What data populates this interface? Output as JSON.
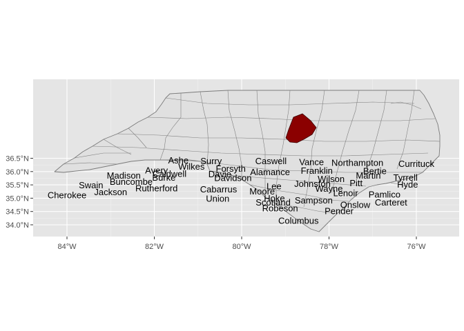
{
  "colors": {
    "highlight": "#8b0000",
    "panel": "#e5e5e5",
    "county_fill": "#e0e0e0",
    "border": "#7f7f7f"
  },
  "highlighted_county": "Wake",
  "axes": {
    "x_ticks": [
      {
        "value": -84,
        "label": "84°W"
      },
      {
        "value": -82,
        "label": "82°W"
      },
      {
        "value": -80,
        "label": "80°W"
      },
      {
        "value": -78,
        "label": "78°W"
      },
      {
        "value": -76,
        "label": "76°W"
      }
    ],
    "y_ticks": [
      {
        "value": 34.0,
        "label": "34.0°N"
      },
      {
        "value": 34.5,
        "label": "34.5°N"
      },
      {
        "value": 35.0,
        "label": "35.0°N"
      },
      {
        "value": 35.5,
        "label": "35.5°N"
      },
      {
        "value": 36.0,
        "label": "36.0°N"
      },
      {
        "value": 36.5,
        "label": "36.5°N"
      }
    ],
    "xlim": [
      -84.75,
      -74.95
    ],
    "ylim": [
      33.75,
      36.75
    ],
    "grid": true
  },
  "labels": [
    {
      "name": "Ashe",
      "lon": -81.45,
      "lat": 36.43
    },
    {
      "name": "Surry",
      "lon": -80.7,
      "lat": 36.41
    },
    {
      "name": "Caswell",
      "lon": -79.33,
      "lat": 36.41
    },
    {
      "name": "Vance",
      "lon": -78.4,
      "lat": 36.37
    },
    {
      "name": "Northampton",
      "lon": -77.35,
      "lat": 36.35
    },
    {
      "name": "Currituck",
      "lon": -76.0,
      "lat": 36.3
    },
    {
      "name": "Wilkes",
      "lon": -81.15,
      "lat": 36.2
    },
    {
      "name": "Forsyth",
      "lon": -80.25,
      "lat": 36.12
    },
    {
      "name": "Franklin",
      "lon": -78.28,
      "lat": 36.05
    },
    {
      "name": "Bertie",
      "lon": -76.95,
      "lat": 36.03
    },
    {
      "name": "Avery",
      "lon": -81.95,
      "lat": 36.06
    },
    {
      "name": "Caldwell",
      "lon": -81.65,
      "lat": 35.93
    },
    {
      "name": "Alamance",
      "lon": -79.35,
      "lat": 36.0
    },
    {
      "name": "Davie",
      "lon": -80.5,
      "lat": 35.92
    },
    {
      "name": "Madison",
      "lon": -82.7,
      "lat": 35.86
    },
    {
      "name": "Martin",
      "lon": -77.1,
      "lat": 35.86
    },
    {
      "name": "Burke",
      "lon": -81.78,
      "lat": 35.79
    },
    {
      "name": "Davidson",
      "lon": -80.2,
      "lat": 35.78
    },
    {
      "name": "Wilson",
      "lon": -77.95,
      "lat": 35.74
    },
    {
      "name": "Tyrrell",
      "lon": -76.25,
      "lat": 35.79
    },
    {
      "name": "Buncombe",
      "lon": -82.53,
      "lat": 35.63
    },
    {
      "name": "Johnston",
      "lon": -78.38,
      "lat": 35.55
    },
    {
      "name": "Pitt",
      "lon": -77.38,
      "lat": 35.58
    },
    {
      "name": "Hyde",
      "lon": -76.2,
      "lat": 35.53
    },
    {
      "name": "Swain",
      "lon": -83.45,
      "lat": 35.5
    },
    {
      "name": "Lee",
      "lon": -79.26,
      "lat": 35.47
    },
    {
      "name": "Rutherford",
      "lon": -81.95,
      "lat": 35.39
    },
    {
      "name": "Cabarrus",
      "lon": -80.53,
      "lat": 35.35
    },
    {
      "name": "Wayne",
      "lon": -78.0,
      "lat": 35.37
    },
    {
      "name": "Moore",
      "lon": -79.53,
      "lat": 35.27
    },
    {
      "name": "Jackson",
      "lon": -83.0,
      "lat": 35.25
    },
    {
      "name": "Lenoir",
      "lon": -77.62,
      "lat": 35.2
    },
    {
      "name": "Pamlico",
      "lon": -76.73,
      "lat": 35.15
    },
    {
      "name": "Cherokee",
      "lon": -84.0,
      "lat": 35.13
    },
    {
      "name": "Union",
      "lon": -80.55,
      "lat": 35.0
    },
    {
      "name": "Hoke",
      "lon": -79.25,
      "lat": 35.01
    },
    {
      "name": "Sampson",
      "lon": -78.35,
      "lat": 34.93
    },
    {
      "name": "Scotland",
      "lon": -79.28,
      "lat": 34.85
    },
    {
      "name": "Carteret",
      "lon": -76.58,
      "lat": 34.86
    },
    {
      "name": "Onslow",
      "lon": -77.4,
      "lat": 34.76
    },
    {
      "name": "Robeson",
      "lon": -79.12,
      "lat": 34.64
    },
    {
      "name": "Pender",
      "lon": -77.77,
      "lat": 34.53
    },
    {
      "name": "Columbus",
      "lon": -78.7,
      "lat": 34.17
    }
  ]
}
